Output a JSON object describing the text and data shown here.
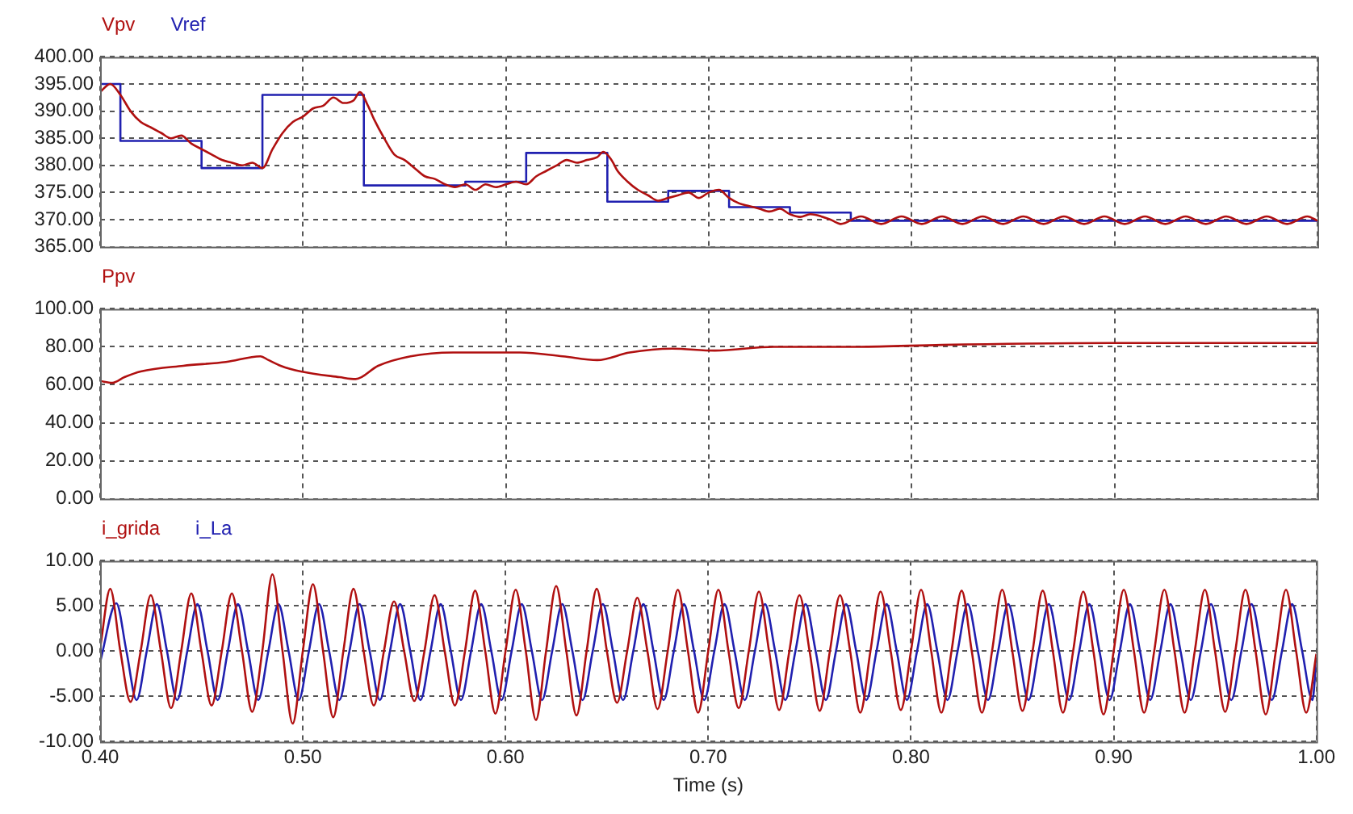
{
  "chart_data": [
    {
      "type": "line",
      "legend": "top left",
      "grid": true,
      "marker": "none",
      "line_style": "solid",
      "tick_labels": "y",
      "xlim": [
        0.4,
        1.0
      ],
      "xticks": [
        {
          "value": 0.4,
          "label": null
        },
        {
          "value": 0.5,
          "label": null
        },
        {
          "value": 0.6,
          "label": null
        },
        {
          "value": 0.7,
          "label": null
        },
        {
          "value": 0.8,
          "label": null
        },
        {
          "value": 0.9,
          "label": null
        },
        {
          "value": 1.0,
          "label": null
        }
      ],
      "ylim": [
        365,
        400
      ],
      "yticks": [
        {
          "value": 365,
          "label": "365.00"
        },
        {
          "value": 370,
          "label": "370.00"
        },
        {
          "value": 375,
          "label": "375.00"
        },
        {
          "value": 380,
          "label": "380.00"
        },
        {
          "value": 385,
          "label": "385.00"
        },
        {
          "value": 390,
          "label": "390.00"
        },
        {
          "value": 395,
          "label": "395.00"
        },
        {
          "value": 400,
          "label": "400.00"
        }
      ],
      "series": [
        {
          "name": "Vpv",
          "color": "#b01010",
          "x": [
            0.4,
            0.405,
            0.41,
            0.415,
            0.42,
            0.425,
            0.43,
            0.435,
            0.44,
            0.445,
            0.45,
            0.455,
            0.46,
            0.465,
            0.47,
            0.475,
            0.48,
            0.485,
            0.49,
            0.495,
            0.5,
            0.505,
            0.51,
            0.515,
            0.52,
            0.525,
            0.528,
            0.532,
            0.535,
            0.54,
            0.545,
            0.55,
            0.555,
            0.56,
            0.565,
            0.57,
            0.575,
            0.58,
            0.585,
            0.59,
            0.595,
            0.6,
            0.605,
            0.61,
            0.615,
            0.62,
            0.625,
            0.63,
            0.635,
            0.64,
            0.645,
            0.648,
            0.652,
            0.655,
            0.66,
            0.665,
            0.67,
            0.675,
            0.68,
            0.685,
            0.69,
            0.695,
            0.7,
            0.705,
            0.71,
            0.715,
            0.72,
            0.725,
            0.73,
            0.735,
            0.74,
            0.745,
            0.75,
            0.76,
            0.765,
            0.775,
            0.785,
            0.795,
            0.805,
            0.815,
            0.825,
            0.835,
            0.845,
            0.855,
            0.865,
            0.875,
            0.885,
            0.895,
            0.905,
            0.915,
            0.925,
            0.935,
            0.945,
            0.955,
            0.965,
            0.975,
            0.985,
            0.995,
            1.0
          ],
          "values": [
            393.5,
            395,
            393,
            390,
            388,
            387,
            386,
            385,
            385.5,
            384,
            383,
            382,
            381,
            380.5,
            380,
            380.5,
            379.5,
            383,
            386,
            388,
            389,
            390.5,
            391,
            392.5,
            391.5,
            392,
            393.5,
            391,
            388.5,
            385,
            382,
            381,
            379.5,
            378,
            377.5,
            376.5,
            376,
            376.5,
            375.5,
            376.5,
            376,
            376.5,
            377,
            376.5,
            378,
            379,
            380,
            381,
            380.5,
            381,
            381.5,
            382.5,
            381,
            379,
            377,
            375.5,
            374.5,
            373.5,
            374,
            374.5,
            375,
            374,
            375,
            375.5,
            374,
            373,
            372.5,
            372,
            371.5,
            372,
            371,
            370.5,
            371,
            370,
            369.2,
            370.6,
            369.2,
            370.6,
            369.2,
            370.6,
            369.2,
            370.6,
            369.2,
            370.6,
            369.2,
            370.6,
            369.2,
            370.6,
            369.2,
            370.6,
            369.2,
            370.6,
            369.2,
            370.6,
            369.2,
            370.6,
            369.2,
            370.6,
            369.8
          ]
        },
        {
          "name": "Vref",
          "type": "step",
          "color": "#2020b0",
          "x": [
            0.4,
            0.41,
            0.45,
            0.48,
            0.53,
            0.58,
            0.61,
            0.65,
            0.68,
            0.71,
            0.74,
            0.77,
            1.0
          ],
          "values": [
            395,
            384.5,
            379.5,
            393,
            376.3,
            377,
            382.3,
            373.3,
            375.3,
            372.3,
            371.3,
            369.8,
            369.8
          ]
        }
      ]
    },
    {
      "type": "line",
      "legend": "top left",
      "grid": true,
      "marker": "none",
      "line_style": "solid",
      "tick_labels": "y",
      "xlim": [
        0.4,
        1.0
      ],
      "xticks": [
        {
          "value": 0.4,
          "label": null
        },
        {
          "value": 0.5,
          "label": null
        },
        {
          "value": 0.6,
          "label": null
        },
        {
          "value": 0.7,
          "label": null
        },
        {
          "value": 0.8,
          "label": null
        },
        {
          "value": 0.9,
          "label": null
        },
        {
          "value": 1.0,
          "label": null
        }
      ],
      "ylim": [
        0,
        100
      ],
      "yticks": [
        {
          "value": 0,
          "label": "0.00"
        },
        {
          "value": 20,
          "label": "20.00"
        },
        {
          "value": 40,
          "label": "40.00"
        },
        {
          "value": 60,
          "label": "60.00"
        },
        {
          "value": 80,
          "label": "80.00"
        },
        {
          "value": 100,
          "label": "100.00"
        }
      ],
      "series": [
        {
          "name": "Ppv",
          "color": "#b01010",
          "x": [
            0.4,
            0.406,
            0.412,
            0.42,
            0.441,
            0.462,
            0.479,
            0.483,
            0.489,
            0.499,
            0.518,
            0.526,
            0.537,
            0.553,
            0.574,
            0.607,
            0.628,
            0.645,
            0.661,
            0.682,
            0.703,
            0.732,
            0.774,
            0.815,
            0.898,
            1.0
          ],
          "values": [
            62,
            61,
            64,
            67,
            70,
            72,
            75,
            73,
            70,
            67,
            64,
            63,
            70,
            75,
            77,
            77,
            75,
            73,
            77,
            79,
            78,
            80,
            80,
            81,
            82,
            82
          ]
        }
      ]
    },
    {
      "type": "line",
      "legend": "top left",
      "grid": true,
      "marker": "none",
      "line_style": "solid",
      "xlabel": "Time (s)",
      "xlim": [
        0.4,
        1.0
      ],
      "xticks": [
        {
          "value": 0.4,
          "label": "0.40"
        },
        {
          "value": 0.5,
          "label": "0.50"
        },
        {
          "value": 0.6,
          "label": "0.60"
        },
        {
          "value": 0.7,
          "label": "0.70"
        },
        {
          "value": 0.8,
          "label": "0.80"
        },
        {
          "value": 0.9,
          "label": "0.90"
        },
        {
          "value": 1.0,
          "label": "1.00"
        }
      ],
      "ylim": [
        -10,
        10
      ],
      "yticks": [
        {
          "value": -10,
          "label": "-10.00"
        },
        {
          "value": -5,
          "label": "-5.00"
        },
        {
          "value": 0,
          "label": "0.00"
        },
        {
          "value": 5,
          "label": "5.00"
        },
        {
          "value": 10,
          "label": "10.00"
        }
      ],
      "series": [
        {
          "name": "i_grida",
          "color": "#b01010",
          "x": [
            0.4,
            0.405,
            0.41,
            0.415,
            0.42,
            0.425,
            0.43,
            0.435,
            0.44,
            0.445,
            0.45,
            0.455,
            0.46,
            0.465,
            0.47,
            0.475,
            0.48,
            0.485,
            0.49,
            0.495,
            0.5,
            0.505,
            0.51,
            0.515,
            0.52,
            0.525,
            0.53,
            0.535,
            0.54,
            0.545,
            0.55,
            0.555,
            0.56,
            0.565,
            0.57,
            0.575,
            0.58,
            0.585,
            0.59,
            0.595,
            0.6,
            0.605,
            0.61,
            0.615,
            0.62,
            0.625,
            0.63,
            0.635,
            0.64,
            0.645,
            0.65,
            0.655,
            0.66,
            0.665,
            0.67,
            0.675,
            0.68,
            0.685,
            0.69,
            0.695,
            0.7,
            0.705,
            0.71,
            0.715,
            0.72,
            0.725,
            0.73,
            0.735,
            0.74,
            0.745,
            0.75,
            0.755,
            0.76,
            0.765,
            0.77,
            0.775,
            0.78,
            0.785,
            0.79,
            0.795,
            0.8,
            0.805,
            0.81,
            0.815,
            0.82,
            0.825,
            0.83,
            0.835,
            0.84,
            0.845,
            0.85,
            0.855,
            0.86,
            0.865,
            0.87,
            0.875,
            0.88,
            0.885,
            0.89,
            0.895,
            0.9,
            0.905,
            0.91,
            0.915,
            0.92,
            0.925,
            0.93,
            0.935,
            0.94,
            0.945,
            0.95,
            0.955,
            0.96,
            0.965,
            0.97,
            0.975,
            0.98,
            0.985,
            0.99,
            0.995,
            1.0
          ],
          "values": [
            0.3,
            6.9,
            0,
            -5.6,
            0,
            6.2,
            0,
            -6.3,
            0,
            6.4,
            0,
            -6,
            0,
            6.4,
            0,
            -6.7,
            0,
            8.5,
            0,
            -8,
            0,
            7.4,
            0,
            -7.3,
            0,
            6.9,
            0,
            -6,
            0,
            5.5,
            0,
            -5.5,
            0,
            6.2,
            0,
            -6,
            0,
            6.7,
            0,
            -6.9,
            0,
            6.8,
            0,
            -7.6,
            0,
            7.2,
            0,
            -7.1,
            0,
            6.9,
            0,
            -5.7,
            0,
            5.9,
            0,
            -6.4,
            0,
            6.8,
            0,
            -6.8,
            0,
            6.8,
            0,
            -6.3,
            0,
            6.6,
            0,
            -6.5,
            0,
            6.2,
            0,
            -6.6,
            0,
            6.2,
            0,
            -6.8,
            0,
            6.6,
            0,
            -6.5,
            0,
            6.8,
            0,
            -6.8,
            0,
            6.7,
            0,
            -6.8,
            0,
            6.8,
            0,
            -6.6,
            0,
            6.7,
            0,
            -6.8,
            0,
            6.6,
            0,
            -7,
            0,
            6.8,
            0,
            -6.8,
            0,
            6.8,
            0,
            -6.8,
            0,
            6.8,
            0,
            -6.7,
            0,
            6.8,
            0,
            -7,
            0,
            6.8,
            0,
            -6.8,
            -0.3
          ]
        },
        {
          "name": "i_La",
          "color": "#2020b0",
          "x": [
            0.4,
            0.408,
            0.413,
            0.418,
            0.423,
            0.428,
            0.433,
            0.438,
            0.443,
            0.448,
            0.453,
            0.458,
            0.463,
            0.468,
            0.473,
            0.478,
            0.483,
            0.488,
            0.493,
            0.498,
            0.503,
            0.508,
            0.513,
            0.518,
            0.523,
            0.528,
            0.533,
            0.538,
            0.543,
            0.548,
            0.553,
            0.558,
            0.563,
            0.568,
            0.573,
            0.578,
            0.583,
            0.588,
            0.593,
            0.598,
            0.603,
            0.608,
            0.613,
            0.618,
            0.623,
            0.628,
            0.633,
            0.638,
            0.643,
            0.648,
            0.653,
            0.658,
            0.663,
            0.668,
            0.673,
            0.678,
            0.683,
            0.688,
            0.693,
            0.698,
            0.703,
            0.708,
            0.713,
            0.718,
            0.723,
            0.728,
            0.733,
            0.738,
            0.743,
            0.748,
            0.753,
            0.758,
            0.763,
            0.768,
            0.773,
            0.778,
            0.783,
            0.788,
            0.793,
            0.798,
            0.803,
            0.808,
            0.813,
            0.818,
            0.823,
            0.828,
            0.833,
            0.838,
            0.843,
            0.848,
            0.853,
            0.858,
            0.863,
            0.868,
            0.873,
            0.878,
            0.883,
            0.888,
            0.893,
            0.898,
            0.903,
            0.908,
            0.913,
            0.918,
            0.923,
            0.928,
            0.933,
            0.938,
            0.943,
            0.948,
            0.953,
            0.958,
            0.963,
            0.968,
            0.973,
            0.978,
            0.983,
            0.988,
            0.993,
            0.998,
            1.0
          ],
          "values": [
            -1.2,
            5.3,
            0,
            -5.4,
            0,
            5.2,
            0,
            -5.4,
            0,
            5.2,
            0,
            -5.4,
            0,
            5.2,
            0,
            -5.4,
            0,
            5.2,
            0,
            -5.4,
            0,
            5.2,
            0,
            -5.4,
            0,
            5.2,
            0,
            -5.4,
            0,
            5.2,
            0,
            -5.4,
            0,
            5.2,
            0,
            -5.4,
            0,
            5.2,
            0,
            -5.4,
            0,
            5.2,
            0,
            -5.4,
            0,
            5.2,
            0,
            -5.4,
            0,
            5.2,
            0,
            -5.4,
            0,
            5.2,
            0,
            -5.4,
            0,
            5.2,
            0,
            -5.4,
            0,
            5.2,
            0,
            -5.4,
            0,
            5.2,
            0,
            -5.4,
            0,
            5.2,
            0,
            -5.4,
            0,
            5.2,
            0,
            -5.4,
            0,
            5.2,
            0,
            -5.4,
            0,
            5.2,
            0,
            -5.4,
            0,
            5.2,
            0,
            -5.4,
            0,
            5.2,
            0,
            -5.4,
            0,
            5.2,
            0,
            -5.4,
            0,
            5.2,
            0,
            -5.4,
            0,
            5.2,
            0,
            -5.4,
            0,
            5.2,
            0,
            -5.4,
            0,
            5.2,
            0,
            -5.4,
            0,
            5.2,
            0,
            -5.4,
            0,
            5.2,
            0,
            -5.4,
            -1
          ]
        }
      ]
    }
  ]
}
